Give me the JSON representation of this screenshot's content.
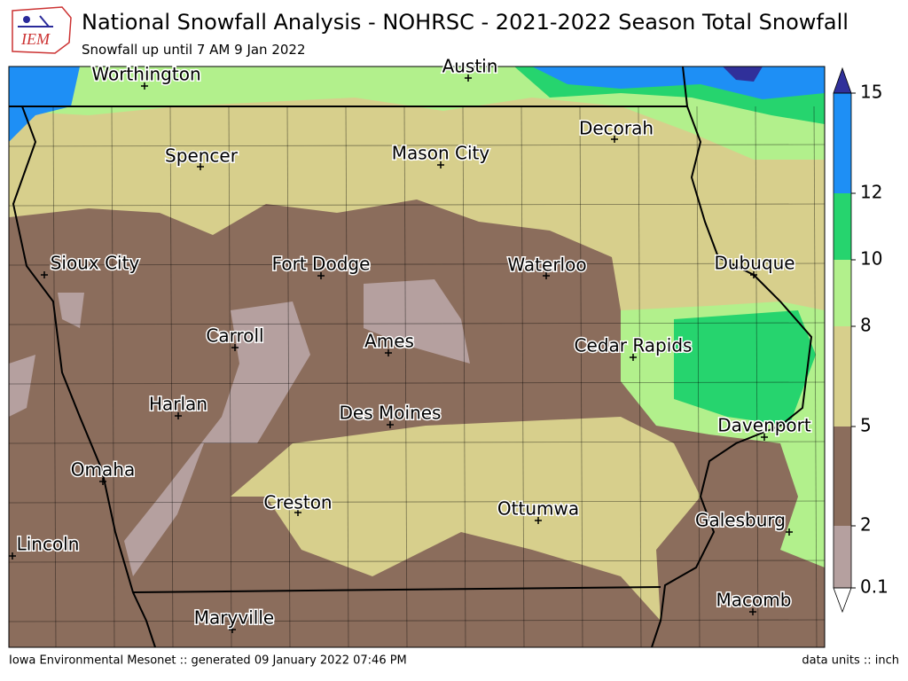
{
  "header": {
    "logo": "IEM",
    "title": "National Snowfall Analysis - NOHRSC - 2021-2022 Season Total Snowfall",
    "subtitle": "Snowfall up until 7 AM 9 Jan 2022"
  },
  "map": {
    "cities": [
      "Worthington",
      "Austin",
      "Spencer",
      "Mason City",
      "Decorah",
      "Sioux City",
      "Fort Dodge",
      "Waterloo",
      "Dubuque",
      "Carroll",
      "Ames",
      "Cedar Rapids",
      "Harlan",
      "Des Moines",
      "Davenport",
      "Omaha",
      "Creston",
      "Ottumwa",
      "Galesburg",
      "Lincoln",
      "Macomb",
      "Maryville"
    ]
  },
  "legend": {
    "ticks": [
      0.1,
      2,
      5,
      8,
      10,
      12,
      15
    ],
    "colors": [
      "#b5a09f",
      "#8b6d5c",
      "#d7cf8c",
      "#b2f08c",
      "#26d46e",
      "#1e8ff5"
    ],
    "under_color": "#ffffff",
    "over_color": "#30309a"
  },
  "footer": {
    "left": "Iowa Environmental Mesonet :: generated 09 January 2022 07:46 PM",
    "right": "data units :: inch"
  }
}
